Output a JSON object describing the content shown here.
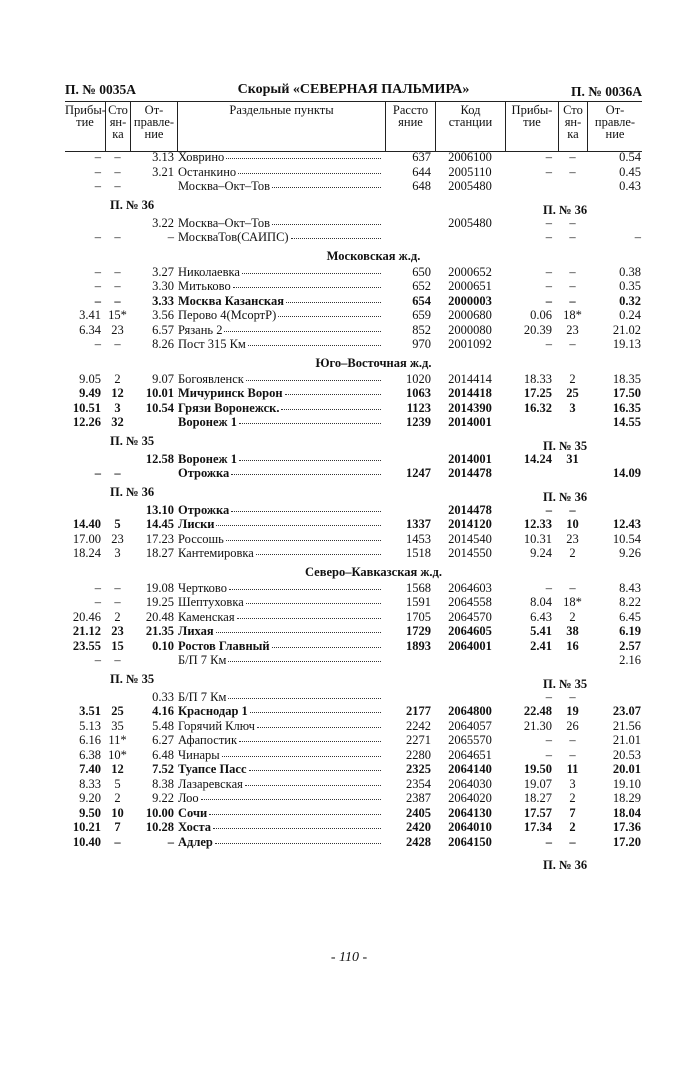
{
  "header": {
    "left_train": "П. № 0035А",
    "title": "Скорый «СЕВЕРНАЯ ПАЛЬМИРА»",
    "right_train": "П. № 0036А"
  },
  "columns": [
    "Прибы-тие",
    "Сто ян-ка",
    "От-правле-ние",
    "Раздельные пункты",
    "Расстояние",
    "Код станции",
    "Прибы-тие",
    "Сто ян-ка",
    "От-правле-ние"
  ],
  "rows": [
    {
      "type": "row",
      "cells": [
        "–",
        "–",
        "3.13",
        "Ховрино",
        "637",
        "2006100",
        "–",
        "–",
        "0.54"
      ]
    },
    {
      "type": "row",
      "cells": [
        "–",
        "–",
        "3.21",
        "Останкино",
        "644",
        "2005110",
        "–",
        "–",
        "0.45"
      ]
    },
    {
      "type": "row",
      "cells": [
        "–",
        "–",
        "",
        "Москва–Окт–Тов",
        "648",
        "2005480",
        "",
        "",
        "0.43"
      ]
    },
    {
      "type": "marker",
      "left": "П. № 36",
      "right": "П. № 36"
    },
    {
      "type": "row",
      "cells": [
        "",
        "",
        "3.22",
        "Москва–Окт–Тов",
        "",
        "2005480",
        "–",
        "–",
        ""
      ]
    },
    {
      "type": "row",
      "cells": [
        "–",
        "–",
        "–",
        "МоскваТов(САИПС)",
        "",
        "",
        "–",
        "–",
        "–"
      ]
    },
    {
      "type": "section",
      "label": "Московская ж.д."
    },
    {
      "type": "row",
      "cells": [
        "–",
        "–",
        "3.27",
        "Николаевка",
        "650",
        "2000652",
        "–",
        "–",
        "0.38"
      ]
    },
    {
      "type": "row",
      "cells": [
        "–",
        "–",
        "3.30",
        "Митьково",
        "652",
        "2000651",
        "–",
        "–",
        "0.35"
      ]
    },
    {
      "type": "row",
      "bold": true,
      "cells": [
        "–",
        "–",
        "3.33",
        "Москва Казанская",
        "654",
        "2000003",
        "–",
        "–",
        "0.32"
      ]
    },
    {
      "type": "row",
      "cells": [
        "3.41",
        "15*",
        "3.56",
        "Перово 4(МсортР)",
        "659",
        "2000680",
        "0.06",
        "18*",
        "0.24"
      ]
    },
    {
      "type": "row",
      "cells": [
        "6.34",
        "23",
        "6.57",
        "Рязань 2",
        "852",
        "2000080",
        "20.39",
        "23",
        "21.02"
      ]
    },
    {
      "type": "row",
      "cells": [
        "–",
        "–",
        "8.26",
        "Пост 315 Км",
        "970",
        "2001092",
        "–",
        "–",
        "19.13"
      ]
    },
    {
      "type": "section",
      "label": "Юго–Восточная ж.д."
    },
    {
      "type": "row",
      "cells": [
        "9.05",
        "2",
        "9.07",
        "Богоявленск",
        "1020",
        "2014414",
        "18.33",
        "2",
        "18.35"
      ]
    },
    {
      "type": "row",
      "bold": true,
      "cells": [
        "9.49",
        "12",
        "10.01",
        "Мичуринск Ворон",
        "1063",
        "2014418",
        "17.25",
        "25",
        "17.50"
      ]
    },
    {
      "type": "row",
      "bold": true,
      "cells": [
        "10.51",
        "3",
        "10.54",
        "Грязи Воронежск.",
        "1123",
        "2014390",
        "16.32",
        "3",
        "16.35"
      ]
    },
    {
      "type": "row",
      "bold": true,
      "cells": [
        "12.26",
        "32",
        "",
        "Воронеж 1",
        "1239",
        "2014001",
        "",
        "",
        "14.55"
      ]
    },
    {
      "type": "marker",
      "left": "П. № 35",
      "right": "П. № 35"
    },
    {
      "type": "row",
      "bold": true,
      "cells": [
        "",
        "",
        "12.58",
        "Воронеж 1",
        "",
        "2014001",
        "14.24",
        "31",
        ""
      ]
    },
    {
      "type": "row",
      "bold": true,
      "cells": [
        "–",
        "–",
        "",
        "Отрожка",
        "1247",
        "2014478",
        "",
        "",
        "14.09"
      ]
    },
    {
      "type": "marker",
      "left": "П. № 36",
      "right": "П. № 36"
    },
    {
      "type": "row",
      "bold": true,
      "cells": [
        "",
        "",
        "13.10",
        "Отрожка",
        "",
        "2014478",
        "–",
        "–",
        ""
      ]
    },
    {
      "type": "row",
      "bold": true,
      "cells": [
        "14.40",
        "5",
        "14.45",
        "Лиски",
        "1337",
        "2014120",
        "12.33",
        "10",
        "12.43"
      ]
    },
    {
      "type": "row",
      "cells": [
        "17.00",
        "23",
        "17.23",
        "Россошь",
        "1453",
        "2014540",
        "10.31",
        "23",
        "10.54"
      ]
    },
    {
      "type": "row",
      "cells": [
        "18.24",
        "3",
        "18.27",
        "Кантемировка",
        "1518",
        "2014550",
        "9.24",
        "2",
        "9.26"
      ]
    },
    {
      "type": "section",
      "label": "Северо–Кавказская ж.д."
    },
    {
      "type": "row",
      "cells": [
        "–",
        "–",
        "19.08",
        "Чертково",
        "1568",
        "2064603",
        "–",
        "–",
        "8.43"
      ]
    },
    {
      "type": "row",
      "cells": [
        "–",
        "–",
        "19.25",
        "Шептуховка",
        "1591",
        "2064558",
        "8.04",
        "18*",
        "8.22"
      ]
    },
    {
      "type": "row",
      "cells": [
        "20.46",
        "2",
        "20.48",
        "Каменская",
        "1705",
        "2064570",
        "6.43",
        "2",
        "6.45"
      ]
    },
    {
      "type": "row",
      "bold": true,
      "cells": [
        "21.12",
        "23",
        "21.35",
        "Лихая",
        "1729",
        "2064605",
        "5.41",
        "38",
        "6.19"
      ]
    },
    {
      "type": "row",
      "bold": true,
      "cells": [
        "23.55",
        "15",
        "0.10",
        "Ростов Главный",
        "1893",
        "2064001",
        "2.41",
        "16",
        "2.57"
      ]
    },
    {
      "type": "row",
      "cells": [
        "–",
        "–",
        "",
        "Б/П 7 Км",
        "",
        "",
        "",
        "",
        "2.16"
      ]
    },
    {
      "type": "marker",
      "left": "П. № 35",
      "right": "П. № 35"
    },
    {
      "type": "row",
      "cells": [
        "",
        "",
        "0.33",
        "Б/П 7 Км",
        "",
        "",
        "–",
        "–",
        ""
      ]
    },
    {
      "type": "row",
      "bold": true,
      "cells": [
        "3.51",
        "25",
        "4.16",
        "Краснодар 1",
        "2177",
        "2064800",
        "22.48",
        "19",
        "23.07"
      ]
    },
    {
      "type": "row",
      "cells": [
        "5.13",
        "35",
        "5.48",
        "Горячий Ключ",
        "2242",
        "2064057",
        "21.30",
        "26",
        "21.56"
      ]
    },
    {
      "type": "row",
      "cells": [
        "6.16",
        "11*",
        "6.27",
        "Афапостик",
        "2271",
        "2065570",
        "–",
        "–",
        "21.01"
      ]
    },
    {
      "type": "row",
      "cells": [
        "6.38",
        "10*",
        "6.48",
        "Чинары",
        "2280",
        "2064651",
        "–",
        "–",
        "20.53"
      ]
    },
    {
      "type": "row",
      "bold": true,
      "cells": [
        "7.40",
        "12",
        "7.52",
        "Туапсе Пасс",
        "2325",
        "2064140",
        "19.50",
        "11",
        "20.01"
      ]
    },
    {
      "type": "row",
      "cells": [
        "8.33",
        "5",
        "8.38",
        "Лазаревская",
        "2354",
        "2064030",
        "19.07",
        "3",
        "19.10"
      ]
    },
    {
      "type": "row",
      "cells": [
        "9.20",
        "2",
        "9.22",
        "Лоо",
        "2387",
        "2064020",
        "18.27",
        "2",
        "18.29"
      ]
    },
    {
      "type": "row",
      "bold": true,
      "cells": [
        "9.50",
        "10",
        "10.00",
        "Сочи",
        "2405",
        "2064130",
        "17.57",
        "7",
        "18.04"
      ]
    },
    {
      "type": "row",
      "bold": true,
      "cells": [
        "10.21",
        "7",
        "10.28",
        "Хоста",
        "2420",
        "2064010",
        "17.34",
        "2",
        "17.36"
      ]
    },
    {
      "type": "row",
      "bold": true,
      "cells": [
        "10.40",
        "–",
        "–",
        "Адлер",
        "2428",
        "2064150",
        "–",
        "–",
        "17.20"
      ]
    },
    {
      "type": "marker",
      "left": "",
      "right": "П. № 36"
    }
  ],
  "footer": {
    "page_number": "- 110 -"
  }
}
